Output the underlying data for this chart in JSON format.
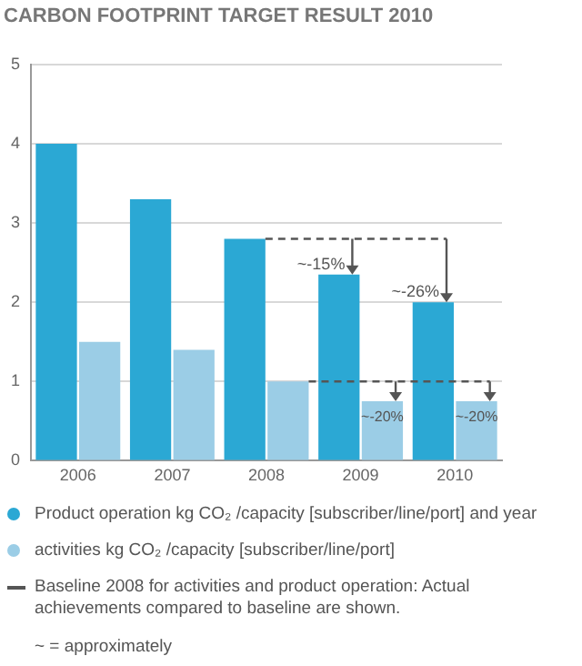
{
  "chart_data": {
    "type": "bar",
    "title": "CARBON FOOTPRINT TARGET RESULT 2010",
    "categories": [
      "2006",
      "2007",
      "2008",
      "2009",
      "2010"
    ],
    "series": [
      {
        "name": "Product operation kg CO₂ /capacity [subscriber/line/port] and year",
        "color": "#2ba8d4",
        "values": [
          4,
          3.3,
          2.8,
          2.35,
          2
        ]
      },
      {
        "name": "activities kg CO₂ /capacity [subscriber/line/port]",
        "color": "#9bcde6",
        "values": [
          1.5,
          1.4,
          1,
          0.75,
          0.75
        ]
      }
    ],
    "ylim": [
      0,
      5
    ],
    "yticks": [
      0,
      1,
      2,
      3,
      4,
      5
    ],
    "grid": "y",
    "legend": "bottom",
    "ref_lines": [
      {
        "axis": "y",
        "value": 2.8,
        "color": "#555555",
        "line_style": "dashed"
      },
      {
        "axis": "y",
        "value": 1,
        "color": "#555555",
        "line_style": "dashed"
      }
    ],
    "annotations": [
      {
        "text": "~-15%",
        "x": "2009",
        "y": 2.35
      },
      {
        "text": "~-26%",
        "x": "2010",
        "y": 2
      },
      {
        "text": "~-20%",
        "x": "2009",
        "y": 0.75
      },
      {
        "text": "~-20%",
        "x": "2010",
        "y": 0.75
      },
      "Baseline 2008 for activities and product operation: Actual achievements compared to baseline are shown.",
      "~ = approximately"
    ]
  }
}
